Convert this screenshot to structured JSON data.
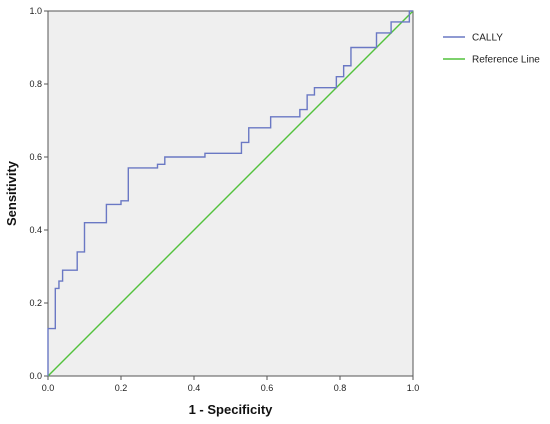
{
  "chart_data": {
    "type": "line",
    "title": "",
    "xlabel": "1 - Specificity",
    "ylabel": "Sensitivity",
    "xlim": [
      0,
      1
    ],
    "ylim": [
      0,
      1
    ],
    "x_ticks": [
      "0.0",
      "0.2",
      "0.4",
      "0.6",
      "0.8",
      "1.0"
    ],
    "y_ticks": [
      "0.0",
      "0.2",
      "0.4",
      "0.6",
      "0.8",
      "1.0"
    ],
    "grid": false,
    "plot_background": "#efefef",
    "legend_position": "right",
    "series": [
      {
        "name": "CALLY",
        "color": "#6a78c4",
        "style": "step",
        "points": [
          [
            0.0,
            0.0
          ],
          [
            0.0,
            0.13
          ],
          [
            0.02,
            0.13
          ],
          [
            0.02,
            0.24
          ],
          [
            0.03,
            0.24
          ],
          [
            0.03,
            0.26
          ],
          [
            0.04,
            0.26
          ],
          [
            0.04,
            0.29
          ],
          [
            0.08,
            0.29
          ],
          [
            0.08,
            0.34
          ],
          [
            0.1,
            0.34
          ],
          [
            0.1,
            0.42
          ],
          [
            0.16,
            0.42
          ],
          [
            0.16,
            0.47
          ],
          [
            0.2,
            0.47
          ],
          [
            0.2,
            0.48
          ],
          [
            0.22,
            0.48
          ],
          [
            0.22,
            0.57
          ],
          [
            0.3,
            0.57
          ],
          [
            0.3,
            0.58
          ],
          [
            0.32,
            0.58
          ],
          [
            0.32,
            0.6
          ],
          [
            0.43,
            0.6
          ],
          [
            0.43,
            0.61
          ],
          [
            0.53,
            0.61
          ],
          [
            0.53,
            0.64
          ],
          [
            0.55,
            0.64
          ],
          [
            0.55,
            0.68
          ],
          [
            0.61,
            0.68
          ],
          [
            0.61,
            0.71
          ],
          [
            0.69,
            0.71
          ],
          [
            0.69,
            0.73
          ],
          [
            0.71,
            0.73
          ],
          [
            0.71,
            0.77
          ],
          [
            0.73,
            0.77
          ],
          [
            0.73,
            0.79
          ],
          [
            0.79,
            0.79
          ],
          [
            0.79,
            0.82
          ],
          [
            0.81,
            0.82
          ],
          [
            0.81,
            0.85
          ],
          [
            0.83,
            0.85
          ],
          [
            0.83,
            0.9
          ],
          [
            0.9,
            0.9
          ],
          [
            0.9,
            0.94
          ],
          [
            0.94,
            0.94
          ],
          [
            0.94,
            0.97
          ],
          [
            0.99,
            0.97
          ],
          [
            0.99,
            1.0
          ],
          [
            1.0,
            1.0
          ]
        ]
      },
      {
        "name": "Reference Line",
        "color": "#52c23c",
        "style": "line",
        "points": [
          [
            0,
            0
          ],
          [
            1,
            1
          ]
        ]
      }
    ]
  }
}
